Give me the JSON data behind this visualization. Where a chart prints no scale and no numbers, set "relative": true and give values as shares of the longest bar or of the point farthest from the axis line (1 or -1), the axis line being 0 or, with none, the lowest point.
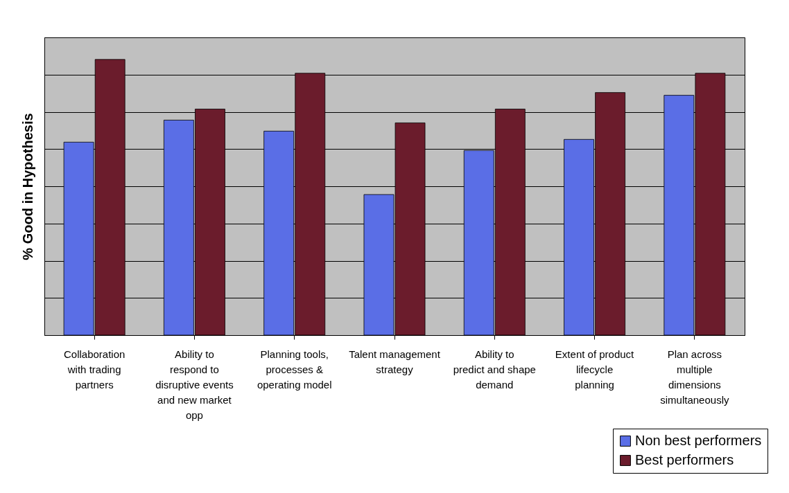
{
  "chart_data": {
    "type": "bar",
    "ylabel": "% Good in Hypothesis",
    "relative": true,
    "grid": "y",
    "legend": "bottom right",
    "categories": [
      "Collaboration with trading partners",
      "Ability to respond to disruptive events and new market opp",
      "Planning tools, processes & operating model",
      "Talent management strategy",
      "Ability to predict and shape demand",
      "Extent of product lifecycle planning",
      "Plan across multiple dimensions simultaneously"
    ],
    "series": [
      {
        "name": "Non best performers",
        "color": "#5a6ee6",
        "values": [
          0.7,
          0.78,
          0.74,
          0.51,
          0.67,
          0.71,
          0.87
        ]
      },
      {
        "name": "Best performers",
        "color": "#6b1c2c",
        "values": [
          1,
          0.82,
          0.95,
          0.77,
          0.82,
          0.88,
          0.95
        ]
      }
    ]
  }
}
